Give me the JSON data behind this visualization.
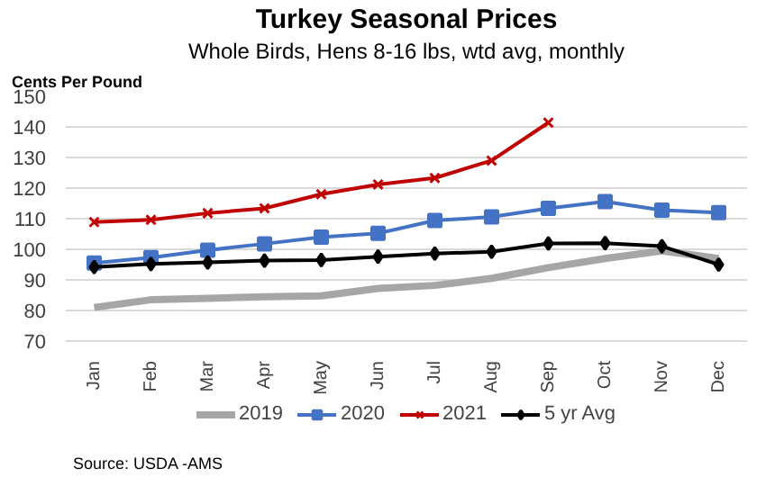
{
  "chart_data": {
    "type": "line",
    "title": "Turkey Seasonal Prices",
    "subtitle": "Whole Birds, Hens 8-16 lbs, wtd avg, monthly",
    "ylabel": "Cents Per Pound",
    "categories": [
      "Jan",
      "Feb",
      "Mar",
      "Apr",
      "May",
      "Jun",
      "Jul",
      "Aug",
      "Sep",
      "Oct",
      "Nov",
      "Dec"
    ],
    "series": [
      {
        "name": "2019",
        "color": "#a6a6a6",
        "marker": "none",
        "values": [
          81,
          83.5,
          84,
          84.5,
          84.8,
          87.2,
          88.2,
          90.5,
          94,
          97,
          99.5,
          97
        ]
      },
      {
        "name": "2020",
        "color": "#4472c4",
        "marker": "square",
        "values": [
          95.5,
          97.3,
          99.7,
          101.8,
          104,
          105.2,
          109.4,
          110.6,
          113.4,
          115.6,
          112.8,
          112
        ]
      },
      {
        "name": "2021",
        "color": "#c00000",
        "marker": "cross",
        "values": [
          108.9,
          109.6,
          111.8,
          113.4,
          118,
          121.2,
          123.3,
          129,
          141.4,
          null,
          null,
          null
        ]
      },
      {
        "name": "5 yr Avg",
        "color": "#000000",
        "marker": "diamond",
        "values": [
          94.2,
          95.2,
          95.7,
          96.3,
          96.5,
          97.6,
          98.6,
          99.2,
          101.9,
          102,
          101,
          95
        ]
      }
    ],
    "ylim": [
      70,
      150
    ],
    "yticks": [
      70,
      80,
      90,
      100,
      110,
      120,
      130,
      140,
      150
    ],
    "grid": "y",
    "legend": "bottom",
    "annotations": [
      "Source: USDA -AMS"
    ]
  }
}
